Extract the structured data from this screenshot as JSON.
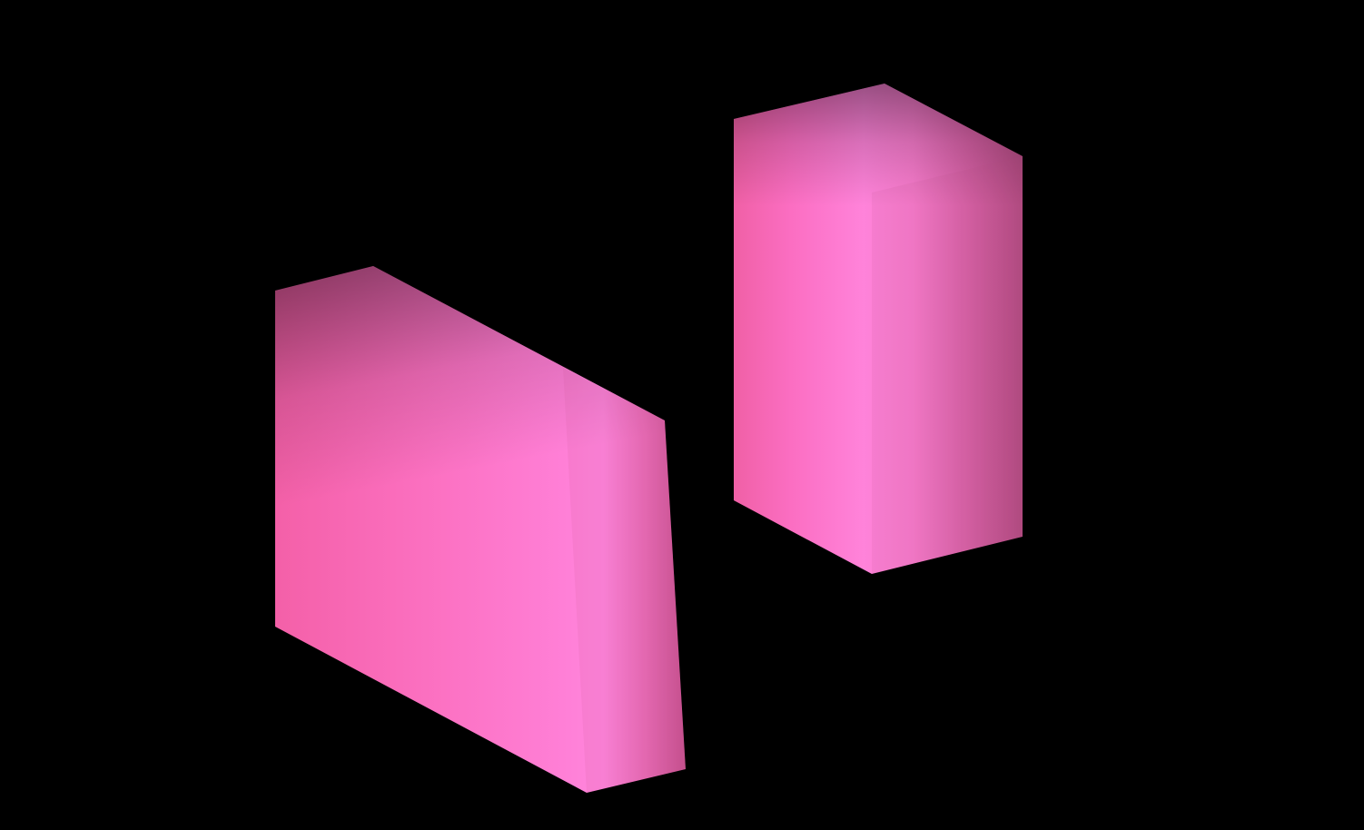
{
  "scene": {
    "background_color": "#000000",
    "objects": [
      {
        "kind": "box",
        "color": "#ff6ec7",
        "highlight_color": "#ff85d8",
        "shadow_color": "#b84f8a"
      },
      {
        "kind": "box",
        "color": "#ff6ec7",
        "highlight_color": "#ff85d8",
        "shadow_color": "#b84f8a"
      }
    ]
  }
}
